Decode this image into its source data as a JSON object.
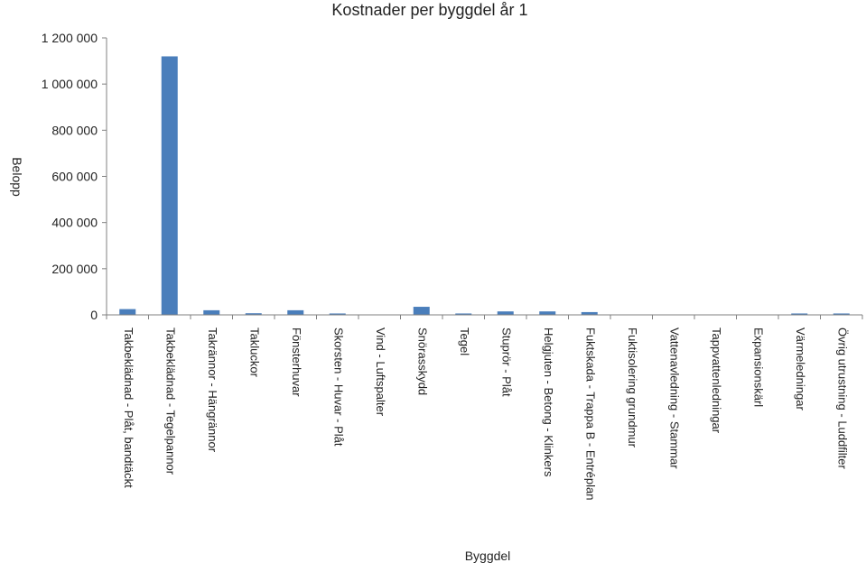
{
  "chart_data": {
    "type": "bar",
    "title": "Kostnader per byggdel år 1",
    "xlabel": "Byggdel",
    "ylabel": "Belopp",
    "ylim": [
      0,
      1200000
    ],
    "yticks": [
      0,
      200000,
      400000,
      600000,
      800000,
      1000000,
      1200000
    ],
    "ytick_labels": [
      "0",
      "200 000",
      "400 000",
      "600 000",
      "800 000",
      "1 000 000",
      "1 200 000"
    ],
    "grid": false,
    "bar_color": "#4a7ebb",
    "categories": [
      "Takbeklädnad - Plåt, bandtäckt",
      "Takbeklädnad - Tegelpannor",
      "Takrännor - Hängrännor",
      "Takluckor",
      "Fönsterhuvar",
      "Skorsten - Huvar - Plåt",
      "Vind - Luftspalter",
      "Snörasskydd",
      "Tegel",
      "Stuprör - Plåt",
      "Helgjuten - Betong - Klinkers",
      "Fuktskada - Trappa B - Entréplan",
      "Fuktisolering grundmur",
      "Vattenavledning - Stammar",
      "Tappvattenledningar",
      "Expansionskärl",
      "Värmeledningar",
      "Övrig utrustning - Luddfilter"
    ],
    "values": [
      25000,
      1120000,
      20000,
      7000,
      20000,
      6000,
      0,
      35000,
      6000,
      15000,
      15000,
      12000,
      0,
      0,
      0,
      0,
      6000,
      6000
    ]
  }
}
